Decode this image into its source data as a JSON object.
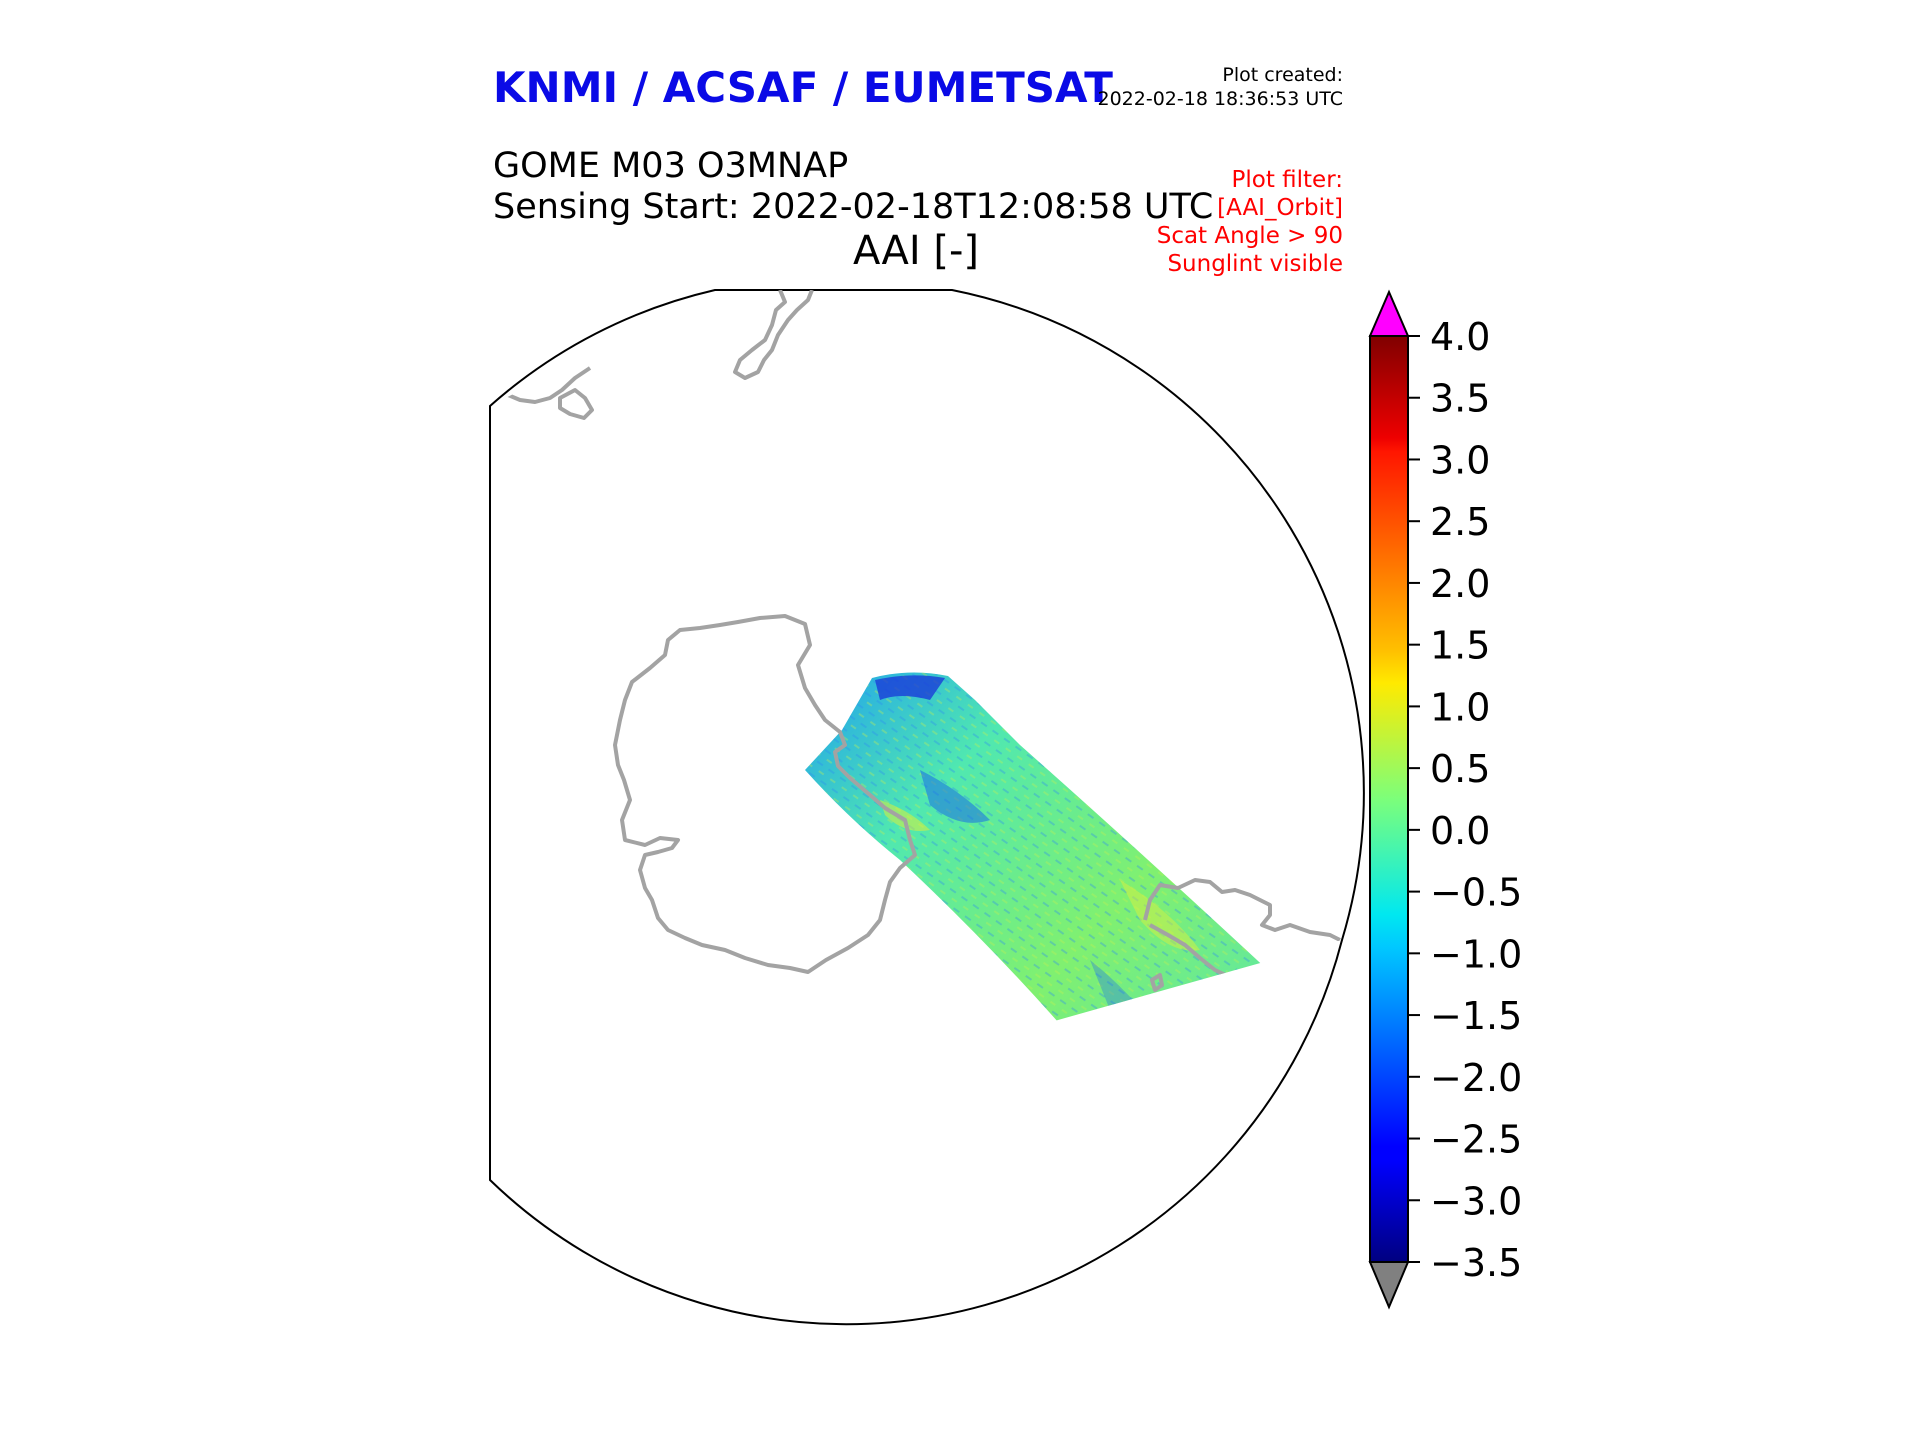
{
  "header": {
    "title": "KNMI / ACSAF / EUMETSAT",
    "created_label": "Plot created:",
    "created_time": "2022-02-18 18:36:53 UTC",
    "product": "GOME M03 O3MNAP",
    "sensing_start": "Sensing Start: 2022-02-18T12:08:58 UTC",
    "variable": "AAI [-]",
    "filters": [
      "Plot filter:",
      "[AAI_Orbit]",
      "Scat Angle > 90",
      "Sunglint visible"
    ]
  },
  "colors": {
    "title": "#0a0ae6",
    "filter": "#ff0000",
    "coastline": "#a3a3a3",
    "extend_max": "#ff00ff",
    "extend_min": "#808080"
  },
  "colorbar": {
    "label": "AAI [-]",
    "min": -3.5,
    "max": 4.0,
    "ticks": [
      "4.0",
      "3.5",
      "3.0",
      "2.5",
      "2.0",
      "1.5",
      "1.0",
      "0.5",
      "0.0",
      "−0.5",
      "−1.0",
      "−1.5",
      "−2.0",
      "−2.5",
      "−3.0",
      "−3.5"
    ],
    "tick_values": [
      4.0,
      3.5,
      3.0,
      2.5,
      2.0,
      1.5,
      1.0,
      0.5,
      0.0,
      -0.5,
      -1.0,
      -1.5,
      -2.0,
      -2.5,
      -3.0,
      -3.5
    ],
    "colormap": "jet",
    "extend": "both"
  },
  "map": {
    "projection": "south-polar-stereographic",
    "swath_dominant_values": "AAI mostly between -1.0 and 0.5, localized values near -2.5 and 1.5"
  }
}
